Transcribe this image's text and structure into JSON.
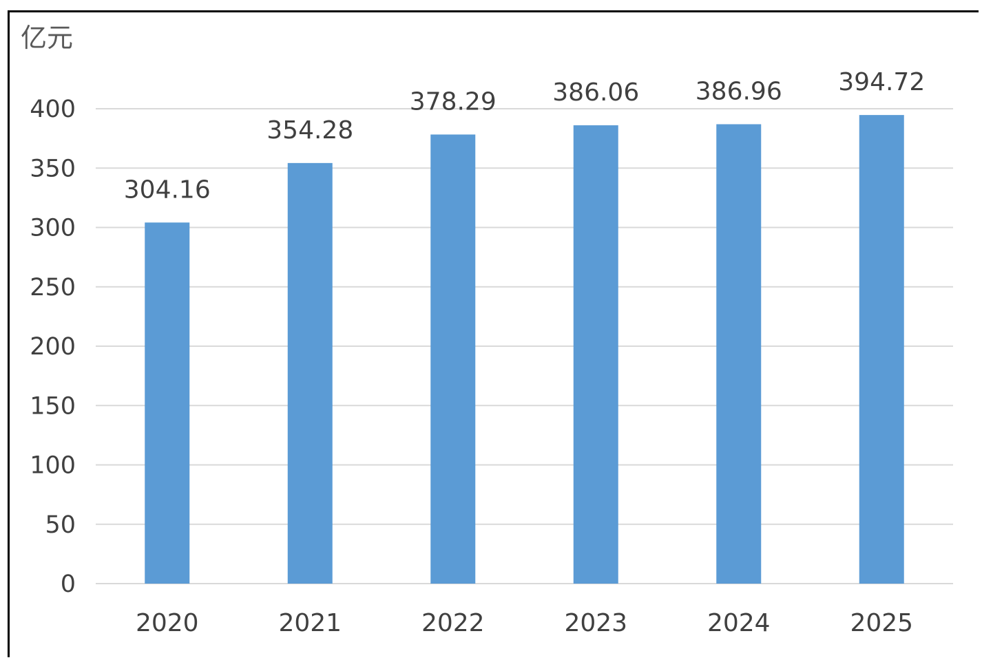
{
  "chart_data": {
    "type": "bar",
    "unit_label": "亿元",
    "categories": [
      "2020",
      "2021",
      "2022",
      "2023",
      "2024",
      "2025"
    ],
    "values": [
      304.16,
      354.28,
      378.29,
      386.06,
      386.96,
      394.72
    ],
    "value_labels": [
      "304.16",
      "354.28",
      "378.29",
      "386.06",
      "386.96",
      "394.72"
    ],
    "ylim": [
      0,
      400
    ],
    "yticks": [
      0,
      50,
      100,
      150,
      200,
      250,
      300,
      350,
      400
    ],
    "grid": true,
    "bar_color": "#5b9bd5",
    "grid_color": "#d9d9d9"
  }
}
